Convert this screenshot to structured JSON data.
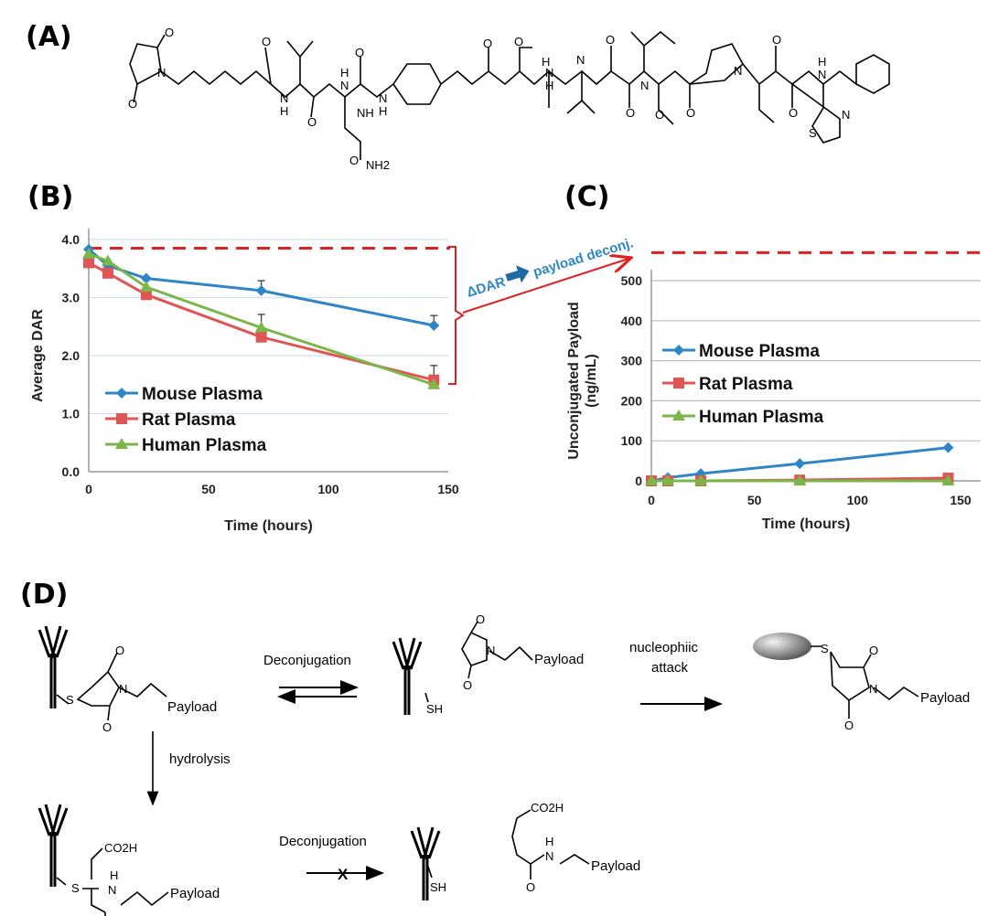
{
  "panels": {
    "a": "(A)",
    "b": "(B)",
    "c": "(C)",
    "d": "(D)"
  },
  "structure_a": {
    "atoms": [
      "O",
      "N",
      "O",
      "O",
      "N",
      "H",
      "O",
      "H",
      "N",
      "O",
      "N",
      "H",
      "O",
      "O",
      "N",
      "H",
      "H",
      "N",
      "O",
      "O",
      "N",
      "O",
      "O",
      "N",
      "O",
      "O",
      "H",
      "N",
      "S",
      "N",
      "NH",
      "O",
      "NH2"
    ]
  },
  "annotation": {
    "delta": "ΔDAR",
    "payload_deconj": "payload deconj.",
    "color": "#e02020",
    "text_color": "#2e86c8"
  },
  "chart_data": [
    {
      "type": "line",
      "ylabel": "Average DAR",
      "xlabel": "Time (hours)",
      "xlim": [
        0,
        150
      ],
      "ylim": [
        0,
        4
      ],
      "xticks": [
        "0",
        "50",
        "100",
        "150"
      ],
      "yticks": [
        "0.0",
        "1.0",
        "2.0",
        "3.0",
        "4.0"
      ],
      "grid": true,
      "legend": "bottom-left",
      "reference_line": 3.85,
      "x": [
        0,
        8,
        24,
        72,
        144
      ],
      "series": [
        {
          "name": "Mouse Plasma",
          "color": "#2e86c8",
          "marker": "diamond",
          "values": [
            3.83,
            3.55,
            3.33,
            3.12,
            2.52
          ],
          "error_up": [
            0,
            0,
            0,
            0.17,
            0.17
          ]
        },
        {
          "name": "Rat Plasma",
          "color": "#e05555",
          "marker": "square",
          "values": [
            3.6,
            3.42,
            3.05,
            2.32,
            1.58
          ],
          "error_up": [
            0,
            0,
            0,
            0,
            0.25
          ]
        },
        {
          "name": "Human Plasma",
          "color": "#7ab648",
          "marker": "triangle",
          "values": [
            3.75,
            3.63,
            3.18,
            2.48,
            1.5
          ],
          "error_up": [
            0,
            0,
            0,
            0.23,
            0
          ]
        }
      ]
    },
    {
      "type": "line",
      "ylabel": "Unconjugated Payload (ng/mL)",
      "ylabel_lines": [
        "Unconjugated Payload",
        "(ng/mL)"
      ],
      "xlabel": "Time (hours)",
      "xlim": [
        0,
        150
      ],
      "ylim": [
        0,
        500
      ],
      "xticks": [
        "0",
        "50",
        "100",
        "150"
      ],
      "yticks": [
        "0",
        "100",
        "200",
        "300",
        "400",
        "500"
      ],
      "grid": true,
      "legend": "center-left",
      "reference_line": 570,
      "x": [
        0,
        8,
        24,
        72,
        144
      ],
      "series": [
        {
          "name": "Mouse Plasma",
          "color": "#2e86c8",
          "marker": "diamond",
          "values": [
            0,
            8,
            18,
            43,
            83
          ]
        },
        {
          "name": "Rat Plasma",
          "color": "#e05555",
          "marker": "square",
          "values": [
            0,
            0,
            0,
            2,
            7
          ]
        },
        {
          "name": "Human Plasma",
          "color": "#7ab648",
          "marker": "triangle",
          "values": [
            0,
            0,
            0,
            0,
            0
          ]
        }
      ]
    }
  ],
  "scheme_d": {
    "deconjugation_top": "Deconjugation",
    "nucleophilic": [
      "nucleophiic",
      "attack"
    ],
    "hydrolysis": "hydrolysis",
    "deconjugation_bottom": "Deconjugation",
    "blocked_mark": "X",
    "payload": "Payload",
    "sh": "SH",
    "s": "S",
    "o": "O",
    "n": "N",
    "h": "H",
    "co2h": "CO2H"
  }
}
